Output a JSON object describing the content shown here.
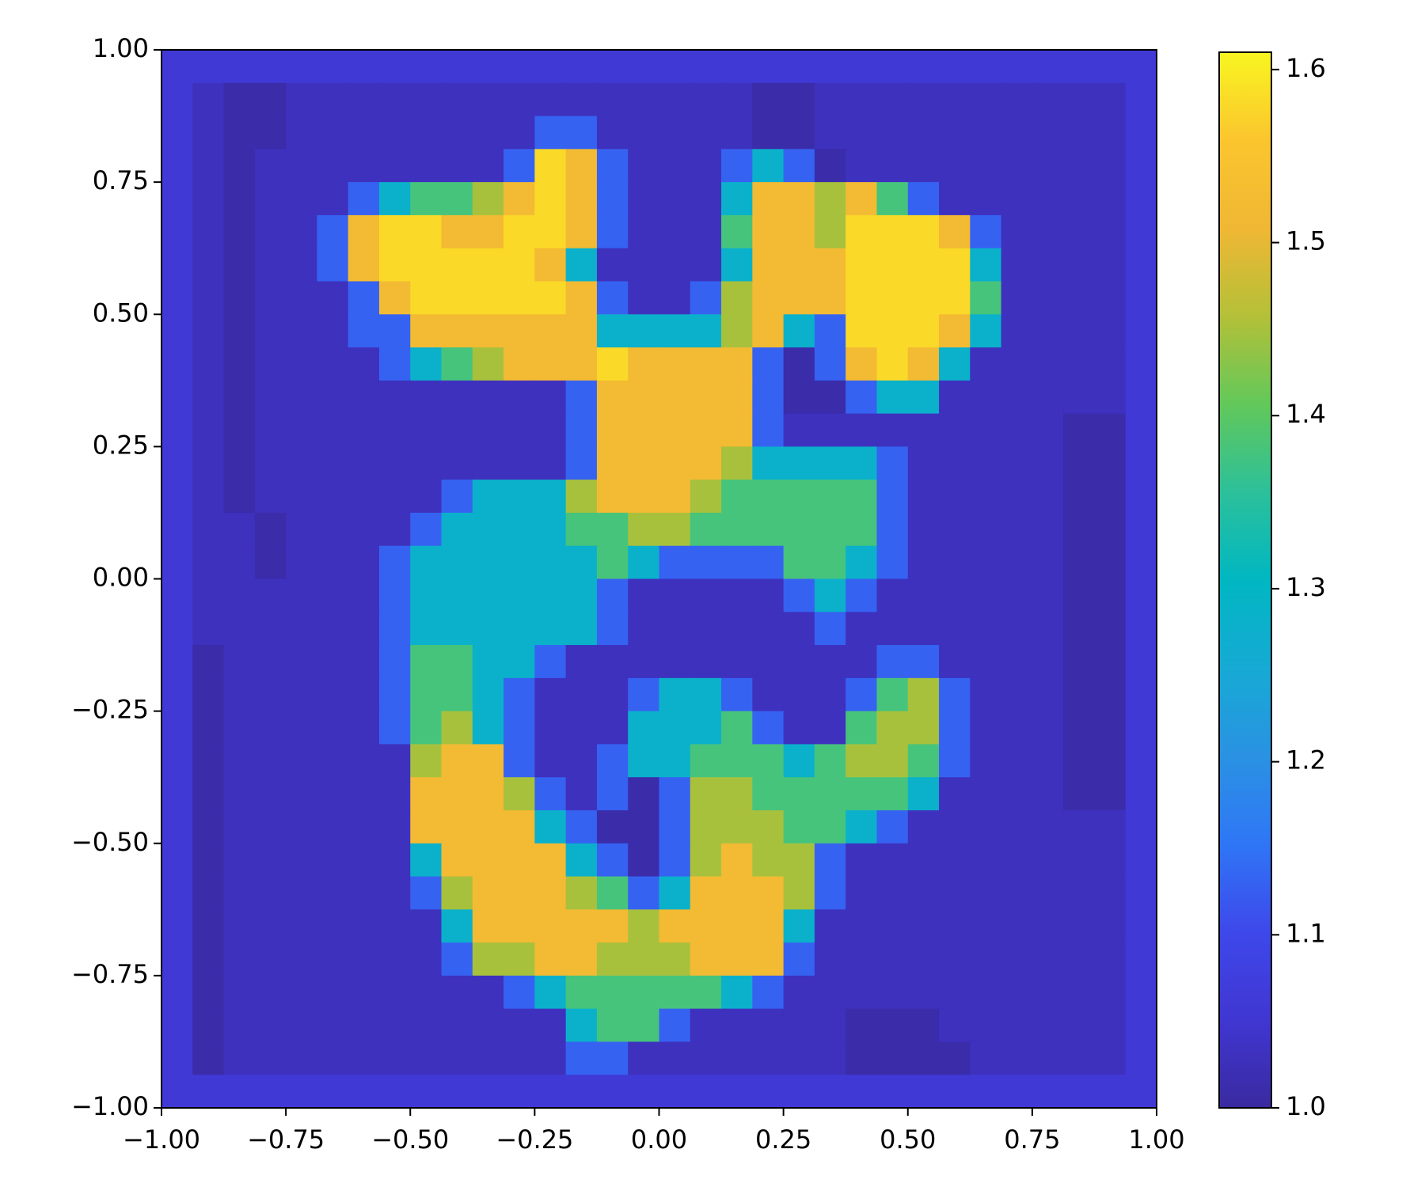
{
  "chart_data": {
    "type": "heatmap",
    "xlim": [
      -1,
      1
    ],
    "ylim": [
      -1,
      1
    ],
    "xticks": [
      {
        "value": -1,
        "label": "−1.00"
      },
      {
        "value": -0.75,
        "label": "−0.75"
      },
      {
        "value": -0.5,
        "label": "−0.50"
      },
      {
        "value": -0.25,
        "label": "−0.25"
      },
      {
        "value": 0,
        "label": "0.00"
      },
      {
        "value": 0.25,
        "label": "0.25"
      },
      {
        "value": 0.5,
        "label": "0.50"
      },
      {
        "value": 0.75,
        "label": "0.75"
      },
      {
        "value": 1,
        "label": "1.00"
      }
    ],
    "yticks": [
      {
        "value": -1,
        "label": "−1.00"
      },
      {
        "value": -0.75,
        "label": "−0.75"
      },
      {
        "value": -0.5,
        "label": "−0.50"
      },
      {
        "value": -0.25,
        "label": "−0.25"
      },
      {
        "value": 0,
        "label": "0.00"
      },
      {
        "value": 0.25,
        "label": "0.25"
      },
      {
        "value": 0.5,
        "label": "0.50"
      },
      {
        "value": 0.75,
        "label": "0.75"
      },
      {
        "value": 1,
        "label": "1.00"
      }
    ],
    "colorbar": {
      "lim": [
        1.0,
        1.61
      ],
      "ticks": [
        {
          "value": 1,
          "label": "1.0"
        },
        1.1,
        1.2,
        1.3,
        1.4,
        1.5,
        1.6
      ]
    },
    "colormap": [
      "#3a2aa0",
      "#4036d2",
      "#3e48ea",
      "#2f76f6",
      "#2a92e2",
      "#16aad4",
      "#00b7c2",
      "#2cc09a",
      "#62c85a",
      "#b4c038",
      "#f0b734",
      "#fbc52e",
      "#f8f520"
    ],
    "z": [
      [
        1.06,
        1.06,
        1.06,
        1.06,
        1.06,
        1.06,
        1.06,
        1.06,
        1.06,
        1.06,
        1.06,
        1.06,
        1.06,
        1.06,
        1.06,
        1.06,
        1.06,
        1.06,
        1.06,
        1.06,
        1.06,
        1.06,
        1.06,
        1.06,
        1.06,
        1.06,
        1.06,
        1.06,
        1.06,
        1.06,
        1.06,
        1.06
      ],
      [
        1.06,
        1.03,
        1.01,
        1.01,
        1.03,
        1.03,
        1.03,
        1.03,
        1.03,
        1.03,
        1.03,
        1.03,
        1.03,
        1.03,
        1.03,
        1.03,
        1.03,
        1.03,
        1.03,
        1.01,
        1.01,
        1.03,
        1.03,
        1.03,
        1.03,
        1.03,
        1.03,
        1.03,
        1.03,
        1.03,
        1.03,
        1.06
      ],
      [
        1.06,
        1.03,
        1.01,
        1.01,
        1.03,
        1.03,
        1.03,
        1.03,
        1.03,
        1.03,
        1.03,
        1.03,
        1.13,
        1.13,
        1.03,
        1.03,
        1.03,
        1.03,
        1.03,
        1.01,
        1.01,
        1.03,
        1.03,
        1.03,
        1.03,
        1.03,
        1.03,
        1.03,
        1.03,
        1.03,
        1.03,
        1.06
      ],
      [
        1.06,
        1.03,
        1.01,
        1.03,
        1.03,
        1.03,
        1.03,
        1.03,
        1.03,
        1.03,
        1.03,
        1.13,
        1.58,
        1.52,
        1.13,
        1.03,
        1.03,
        1.03,
        1.13,
        1.28,
        1.13,
        1.01,
        1.03,
        1.03,
        1.03,
        1.03,
        1.03,
        1.03,
        1.03,
        1.03,
        1.03,
        1.06
      ],
      [
        1.06,
        1.03,
        1.01,
        1.03,
        1.03,
        1.03,
        1.13,
        1.28,
        1.38,
        1.38,
        1.45,
        1.52,
        1.58,
        1.52,
        1.13,
        1.03,
        1.03,
        1.03,
        1.28,
        1.52,
        1.52,
        1.45,
        1.52,
        1.38,
        1.13,
        1.03,
        1.03,
        1.03,
        1.03,
        1.03,
        1.03,
        1.06
      ],
      [
        1.06,
        1.03,
        1.01,
        1.03,
        1.03,
        1.13,
        1.52,
        1.58,
        1.58,
        1.52,
        1.52,
        1.58,
        1.58,
        1.52,
        1.13,
        1.03,
        1.03,
        1.03,
        1.38,
        1.52,
        1.52,
        1.45,
        1.58,
        1.58,
        1.58,
        1.52,
        1.13,
        1.03,
        1.03,
        1.03,
        1.03,
        1.06
      ],
      [
        1.06,
        1.03,
        1.01,
        1.03,
        1.03,
        1.13,
        1.52,
        1.58,
        1.58,
        1.58,
        1.58,
        1.58,
        1.52,
        1.28,
        1.03,
        1.03,
        1.03,
        1.03,
        1.28,
        1.52,
        1.52,
        1.52,
        1.58,
        1.58,
        1.58,
        1.58,
        1.28,
        1.03,
        1.03,
        1.03,
        1.03,
        1.06
      ],
      [
        1.06,
        1.03,
        1.01,
        1.03,
        1.03,
        1.03,
        1.13,
        1.52,
        1.58,
        1.58,
        1.58,
        1.58,
        1.58,
        1.52,
        1.13,
        1.03,
        1.03,
        1.13,
        1.45,
        1.52,
        1.52,
        1.52,
        1.58,
        1.58,
        1.58,
        1.58,
        1.38,
        1.03,
        1.03,
        1.03,
        1.03,
        1.06
      ],
      [
        1.06,
        1.03,
        1.01,
        1.03,
        1.03,
        1.03,
        1.13,
        1.13,
        1.52,
        1.52,
        1.52,
        1.52,
        1.52,
        1.52,
        1.28,
        1.28,
        1.28,
        1.28,
        1.45,
        1.52,
        1.28,
        1.13,
        1.58,
        1.58,
        1.58,
        1.52,
        1.28,
        1.03,
        1.03,
        1.03,
        1.03,
        1.06
      ],
      [
        1.06,
        1.03,
        1.01,
        1.03,
        1.03,
        1.03,
        1.03,
        1.13,
        1.28,
        1.38,
        1.45,
        1.52,
        1.52,
        1.52,
        1.58,
        1.52,
        1.52,
        1.52,
        1.52,
        1.13,
        1.01,
        1.13,
        1.52,
        1.58,
        1.52,
        1.28,
        1.03,
        1.03,
        1.03,
        1.03,
        1.03,
        1.06
      ],
      [
        1.06,
        1.03,
        1.01,
        1.03,
        1.03,
        1.03,
        1.03,
        1.03,
        1.03,
        1.03,
        1.03,
        1.03,
        1.03,
        1.13,
        1.52,
        1.52,
        1.52,
        1.52,
        1.52,
        1.13,
        1.01,
        1.01,
        1.13,
        1.28,
        1.28,
        1.03,
        1.03,
        1.03,
        1.03,
        1.03,
        1.03,
        1.06
      ],
      [
        1.06,
        1.03,
        1.01,
        1.03,
        1.03,
        1.03,
        1.03,
        1.03,
        1.03,
        1.03,
        1.03,
        1.03,
        1.03,
        1.13,
        1.52,
        1.52,
        1.52,
        1.52,
        1.52,
        1.13,
        1.03,
        1.03,
        1.03,
        1.03,
        1.03,
        1.03,
        1.03,
        1.03,
        1.03,
        1.01,
        1.01,
        1.06
      ],
      [
        1.06,
        1.03,
        1.01,
        1.03,
        1.03,
        1.03,
        1.03,
        1.03,
        1.03,
        1.03,
        1.03,
        1.03,
        1.03,
        1.13,
        1.52,
        1.52,
        1.52,
        1.52,
        1.45,
        1.28,
        1.28,
        1.28,
        1.28,
        1.13,
        1.03,
        1.03,
        1.03,
        1.03,
        1.03,
        1.01,
        1.01,
        1.06
      ],
      [
        1.06,
        1.03,
        1.01,
        1.03,
        1.03,
        1.03,
        1.03,
        1.03,
        1.03,
        1.13,
        1.28,
        1.28,
        1.28,
        1.45,
        1.52,
        1.52,
        1.52,
        1.45,
        1.38,
        1.38,
        1.38,
        1.38,
        1.38,
        1.13,
        1.03,
        1.03,
        1.03,
        1.03,
        1.03,
        1.01,
        1.01,
        1.06
      ],
      [
        1.06,
        1.03,
        1.03,
        1.01,
        1.03,
        1.03,
        1.03,
        1.03,
        1.13,
        1.28,
        1.28,
        1.28,
        1.28,
        1.38,
        1.38,
        1.45,
        1.45,
        1.38,
        1.38,
        1.38,
        1.38,
        1.38,
        1.38,
        1.13,
        1.03,
        1.03,
        1.03,
        1.03,
        1.03,
        1.01,
        1.01,
        1.06
      ],
      [
        1.06,
        1.03,
        1.03,
        1.01,
        1.03,
        1.03,
        1.03,
        1.13,
        1.28,
        1.28,
        1.28,
        1.28,
        1.28,
        1.28,
        1.38,
        1.28,
        1.13,
        1.13,
        1.13,
        1.13,
        1.38,
        1.38,
        1.28,
        1.13,
        1.03,
        1.03,
        1.03,
        1.03,
        1.03,
        1.01,
        1.01,
        1.06
      ],
      [
        1.06,
        1.03,
        1.03,
        1.03,
        1.03,
        1.03,
        1.03,
        1.13,
        1.28,
        1.28,
        1.28,
        1.28,
        1.28,
        1.28,
        1.13,
        1.03,
        1.03,
        1.03,
        1.03,
        1.03,
        1.13,
        1.28,
        1.13,
        1.03,
        1.03,
        1.03,
        1.03,
        1.03,
        1.03,
        1.01,
        1.01,
        1.06
      ],
      [
        1.06,
        1.03,
        1.03,
        1.03,
        1.03,
        1.03,
        1.03,
        1.13,
        1.28,
        1.28,
        1.28,
        1.28,
        1.28,
        1.28,
        1.13,
        1.03,
        1.03,
        1.03,
        1.03,
        1.03,
        1.03,
        1.13,
        1.03,
        1.03,
        1.03,
        1.03,
        1.03,
        1.03,
        1.03,
        1.01,
        1.01,
        1.06
      ],
      [
        1.06,
        1.01,
        1.03,
        1.03,
        1.03,
        1.03,
        1.03,
        1.13,
        1.38,
        1.38,
        1.28,
        1.28,
        1.13,
        1.03,
        1.03,
        1.03,
        1.03,
        1.03,
        1.03,
        1.03,
        1.03,
        1.03,
        1.03,
        1.13,
        1.13,
        1.03,
        1.03,
        1.03,
        1.03,
        1.01,
        1.01,
        1.06
      ],
      [
        1.06,
        1.01,
        1.03,
        1.03,
        1.03,
        1.03,
        1.03,
        1.13,
        1.38,
        1.38,
        1.28,
        1.13,
        1.03,
        1.03,
        1.03,
        1.13,
        1.28,
        1.28,
        1.13,
        1.03,
        1.03,
        1.03,
        1.13,
        1.38,
        1.45,
        1.13,
        1.03,
        1.03,
        1.03,
        1.01,
        1.01,
        1.06
      ],
      [
        1.06,
        1.01,
        1.03,
        1.03,
        1.03,
        1.03,
        1.03,
        1.13,
        1.38,
        1.45,
        1.28,
        1.13,
        1.03,
        1.03,
        1.03,
        1.28,
        1.28,
        1.28,
        1.38,
        1.13,
        1.03,
        1.03,
        1.38,
        1.45,
        1.45,
        1.13,
        1.03,
        1.03,
        1.03,
        1.01,
        1.01,
        1.06
      ],
      [
        1.06,
        1.01,
        1.03,
        1.03,
        1.03,
        1.03,
        1.03,
        1.03,
        1.45,
        1.52,
        1.52,
        1.13,
        1.03,
        1.03,
        1.13,
        1.28,
        1.28,
        1.38,
        1.38,
        1.38,
        1.28,
        1.38,
        1.45,
        1.45,
        1.38,
        1.13,
        1.03,
        1.03,
        1.03,
        1.01,
        1.01,
        1.06
      ],
      [
        1.06,
        1.01,
        1.03,
        1.03,
        1.03,
        1.03,
        1.03,
        1.03,
        1.52,
        1.52,
        1.52,
        1.45,
        1.13,
        1.03,
        1.13,
        1.01,
        1.13,
        1.45,
        1.45,
        1.38,
        1.38,
        1.38,
        1.38,
        1.38,
        1.28,
        1.03,
        1.03,
        1.03,
        1.03,
        1.01,
        1.01,
        1.06
      ],
      [
        1.06,
        1.01,
        1.03,
        1.03,
        1.03,
        1.03,
        1.03,
        1.03,
        1.52,
        1.52,
        1.52,
        1.52,
        1.28,
        1.13,
        1.01,
        1.01,
        1.13,
        1.45,
        1.45,
        1.45,
        1.38,
        1.38,
        1.28,
        1.13,
        1.03,
        1.03,
        1.03,
        1.03,
        1.03,
        1.03,
        1.03,
        1.06
      ],
      [
        1.06,
        1.01,
        1.03,
        1.03,
        1.03,
        1.03,
        1.03,
        1.03,
        1.28,
        1.52,
        1.52,
        1.52,
        1.52,
        1.28,
        1.13,
        1.01,
        1.13,
        1.45,
        1.52,
        1.45,
        1.45,
        1.13,
        1.03,
        1.03,
        1.03,
        1.03,
        1.03,
        1.03,
        1.03,
        1.03,
        1.03,
        1.06
      ],
      [
        1.06,
        1.01,
        1.03,
        1.03,
        1.03,
        1.03,
        1.03,
        1.03,
        1.13,
        1.45,
        1.52,
        1.52,
        1.52,
        1.45,
        1.38,
        1.13,
        1.28,
        1.52,
        1.52,
        1.52,
        1.45,
        1.13,
        1.03,
        1.03,
        1.03,
        1.03,
        1.03,
        1.03,
        1.03,
        1.03,
        1.03,
        1.06
      ],
      [
        1.06,
        1.01,
        1.03,
        1.03,
        1.03,
        1.03,
        1.03,
        1.03,
        1.03,
        1.28,
        1.52,
        1.52,
        1.52,
        1.52,
        1.52,
        1.45,
        1.52,
        1.52,
        1.52,
        1.52,
        1.28,
        1.03,
        1.03,
        1.03,
        1.03,
        1.03,
        1.03,
        1.03,
        1.03,
        1.03,
        1.03,
        1.06
      ],
      [
        1.06,
        1.01,
        1.03,
        1.03,
        1.03,
        1.03,
        1.03,
        1.03,
        1.03,
        1.13,
        1.45,
        1.45,
        1.52,
        1.52,
        1.45,
        1.45,
        1.45,
        1.52,
        1.52,
        1.52,
        1.13,
        1.03,
        1.03,
        1.03,
        1.03,
        1.03,
        1.03,
        1.03,
        1.03,
        1.03,
        1.03,
        1.06
      ],
      [
        1.06,
        1.01,
        1.03,
        1.03,
        1.03,
        1.03,
        1.03,
        1.03,
        1.03,
        1.03,
        1.03,
        1.13,
        1.28,
        1.38,
        1.38,
        1.38,
        1.38,
        1.38,
        1.28,
        1.13,
        1.03,
        1.03,
        1.03,
        1.03,
        1.03,
        1.03,
        1.03,
        1.03,
        1.03,
        1.03,
        1.03,
        1.06
      ],
      [
        1.06,
        1.01,
        1.03,
        1.03,
        1.03,
        1.03,
        1.03,
        1.03,
        1.03,
        1.03,
        1.03,
        1.03,
        1.03,
        1.28,
        1.38,
        1.38,
        1.13,
        1.03,
        1.03,
        1.03,
        1.03,
        1.03,
        1.01,
        1.01,
        1.01,
        1.03,
        1.03,
        1.03,
        1.03,
        1.03,
        1.03,
        1.06
      ],
      [
        1.06,
        1.01,
        1.03,
        1.03,
        1.03,
        1.03,
        1.03,
        1.03,
        1.03,
        1.03,
        1.03,
        1.03,
        1.03,
        1.13,
        1.13,
        1.03,
        1.03,
        1.03,
        1.03,
        1.03,
        1.03,
        1.03,
        1.01,
        1.01,
        1.01,
        1.01,
        1.03,
        1.03,
        1.03,
        1.03,
        1.03,
        1.06
      ],
      [
        1.06,
        1.06,
        1.06,
        1.06,
        1.06,
        1.06,
        1.06,
        1.06,
        1.06,
        1.06,
        1.06,
        1.06,
        1.06,
        1.06,
        1.06,
        1.06,
        1.06,
        1.06,
        1.06,
        1.06,
        1.06,
        1.06,
        1.06,
        1.06,
        1.06,
        1.06,
        1.06,
        1.06,
        1.06,
        1.06,
        1.06,
        1.06
      ]
    ]
  }
}
